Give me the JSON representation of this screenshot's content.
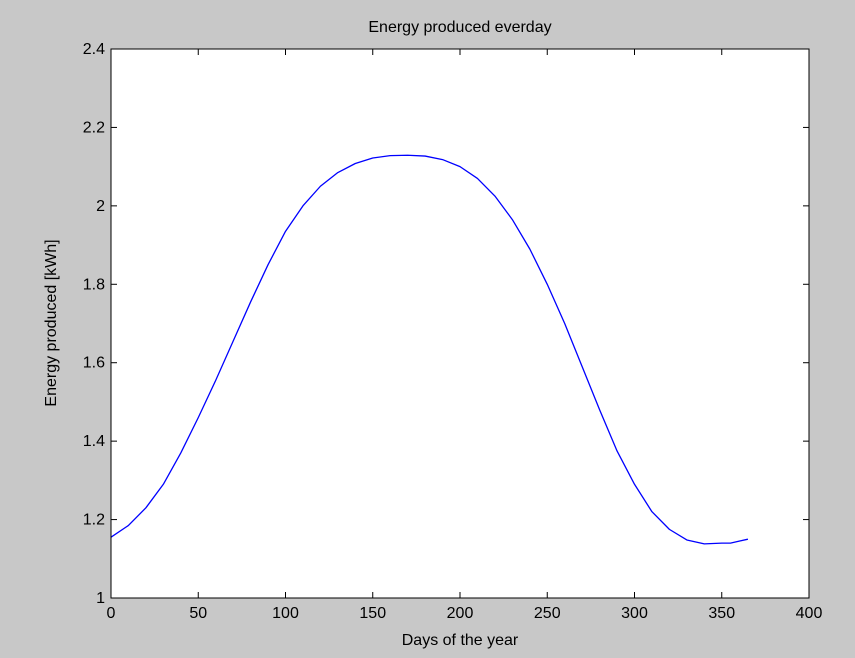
{
  "figure": {
    "background": "#c8c8c8",
    "axes_background": "#ffffff",
    "line_color": "#0000ff"
  },
  "chart_data": {
    "type": "line",
    "title": "Energy produced everday",
    "xlabel": "Days of the year",
    "ylabel": "Energy produced [kWh]",
    "xlim": [
      0,
      400
    ],
    "ylim": [
      1,
      2.4
    ],
    "xticks": [
      0,
      50,
      100,
      150,
      200,
      250,
      300,
      350,
      400
    ],
    "yticks": [
      1,
      1.2,
      1.4,
      1.6,
      1.8,
      2,
      2.2,
      2.4
    ],
    "xtick_labels": [
      "0",
      "50",
      "100",
      "150",
      "200",
      "250",
      "300",
      "350",
      "400"
    ],
    "ytick_labels": [
      "1",
      "1.2",
      "1.4",
      "1.6",
      "1.8",
      "2",
      "2.2",
      "2.4"
    ],
    "grid": false,
    "series": [
      {
        "color": "#0000ff",
        "x": [
          0,
          10,
          20,
          30,
          40,
          50,
          60,
          70,
          80,
          90,
          100,
          110,
          120,
          130,
          140,
          150,
          160,
          170,
          180,
          190,
          200,
          210,
          220,
          230,
          240,
          250,
          260,
          270,
          280,
          290,
          300,
          310,
          320,
          330,
          340,
          350,
          355,
          360,
          365
        ],
        "y": [
          1.155,
          1.185,
          1.23,
          1.29,
          1.37,
          1.46,
          1.555,
          1.655,
          1.755,
          1.85,
          1.935,
          2.0,
          2.05,
          2.085,
          2.108,
          2.122,
          2.128,
          2.129,
          2.127,
          2.118,
          2.1,
          2.07,
          2.025,
          1.965,
          1.89,
          1.8,
          1.7,
          1.59,
          1.48,
          1.375,
          1.29,
          1.22,
          1.175,
          1.148,
          1.138,
          1.14,
          1.14,
          1.145,
          1.15
        ]
      }
    ]
  }
}
